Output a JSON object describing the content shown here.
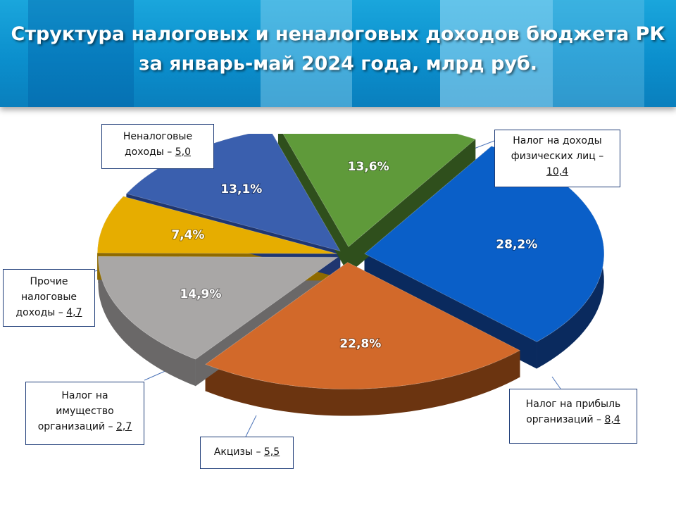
{
  "header": {
    "title_line1": "Структура налоговых и неналоговых доходов бюджета РК",
    "title_line2": "за январь-май 2024 года, млрд руб."
  },
  "chart_data": {
    "type": "pie",
    "title": "Структура налоговых и неналоговых доходов бюджета РК за январь-май 2024 года, млрд руб.",
    "slices": [
      {
        "label": "Налог на доходы физических лиц",
        "value": 10.4,
        "value_text": "10,4",
        "percent": 28.2,
        "percent_text": "28,2%",
        "color": "#0a5fc8",
        "side": "#0a2a5e"
      },
      {
        "label": "Налог на прибыль организаций",
        "value": 8.4,
        "value_text": "8,4",
        "percent": 22.8,
        "percent_text": "22,8%",
        "color": "#d2692a",
        "side": "#6b3410"
      },
      {
        "label": "Акцизы",
        "value": 5.5,
        "value_text": "5,5",
        "percent": 14.9,
        "percent_text": "14,9%",
        "color": "#a9a7a6",
        "side": "#6a6868"
      },
      {
        "label": "Налог на имущество организаций",
        "value": 2.7,
        "value_text": "2,7",
        "percent": 7.4,
        "percent_text": "7,4%",
        "color": "#e6ad00",
        "side": "#8e6a00"
      },
      {
        "label": "Прочие налоговые доходы",
        "value": 4.7,
        "value_text": "4,7",
        "percent": 13.1,
        "percent_text": "13,1%",
        "color": "#3a5fae",
        "side": "#1f3670"
      },
      {
        "label": "Неналоговые доходы",
        "value": 5.0,
        "value_text": "5,0",
        "percent": 13.6,
        "percent_text": "13,6%",
        "color": "#5f9a3a",
        "side": "#2f4f1c"
      }
    ]
  },
  "callouts": [
    {
      "text": "Налог на доходы физических лиц –",
      "value": "10,4"
    },
    {
      "text": "Налог на прибыль организаций –",
      "value": "8,4"
    },
    {
      "text": "Акцизы –",
      "value": "5,5"
    },
    {
      "text": "Налог на имущество организаций –",
      "value": "2,7"
    },
    {
      "text": "Прочие налоговые доходы –",
      "value": "4,7"
    },
    {
      "text": "Неналоговые доходы –",
      "value": "5,0"
    }
  ]
}
